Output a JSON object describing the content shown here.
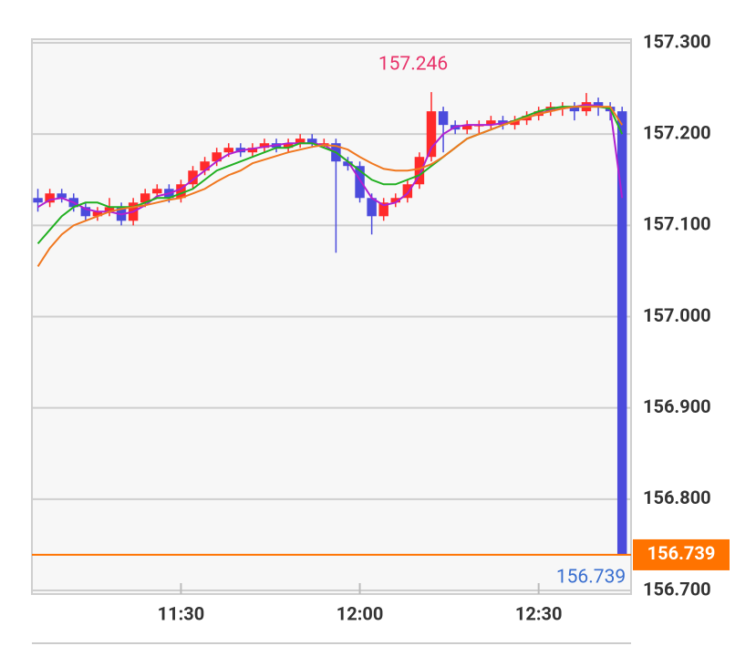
{
  "chart_data": {
    "type": "candlestick",
    "x": [
      666,
      668,
      670,
      672,
      674,
      676,
      678,
      680,
      682,
      684,
      686,
      688,
      690,
      692,
      694,
      696,
      698,
      700,
      702,
      704,
      706,
      708,
      710,
      712,
      714,
      716,
      718,
      720,
      722,
      724,
      726,
      728,
      730,
      732,
      734,
      736,
      738,
      740,
      742,
      744,
      746,
      748,
      750,
      752,
      754,
      756,
      758,
      760,
      762,
      764
    ],
    "open": [
      157.13,
      157.125,
      157.135,
      157.13,
      157.12,
      157.11,
      157.115,
      157.12,
      157.105,
      157.125,
      157.135,
      157.14,
      157.13,
      157.145,
      157.16,
      157.17,
      157.18,
      157.185,
      157.18,
      157.185,
      157.19,
      157.185,
      157.19,
      157.195,
      157.19,
      157.19,
      157.17,
      157.165,
      157.13,
      157.11,
      157.125,
      157.13,
      157.145,
      157.175,
      157.225,
      157.21,
      157.205,
      157.21,
      157.21,
      157.215,
      157.21,
      157.215,
      157.22,
      157.225,
      157.23,
      157.23,
      157.225,
      157.235,
      157.23,
      157.225
    ],
    "high": [
      157.14,
      157.14,
      157.14,
      157.135,
      157.125,
      157.12,
      157.13,
      157.125,
      157.13,
      157.14,
      157.145,
      157.145,
      157.15,
      157.165,
      157.175,
      157.185,
      157.19,
      157.19,
      157.19,
      157.195,
      157.195,
      157.195,
      157.2,
      157.2,
      157.195,
      157.195,
      157.175,
      157.17,
      157.135,
      157.13,
      157.135,
      157.15,
      157.18,
      157.246,
      157.23,
      157.215,
      157.215,
      157.215,
      157.22,
      157.22,
      157.22,
      157.225,
      157.23,
      157.235,
      157.235,
      157.235,
      157.245,
      157.24,
      157.235,
      157.23
    ],
    "low": [
      157.115,
      157.12,
      157.125,
      157.115,
      157.105,
      157.105,
      157.11,
      157.1,
      157.1,
      157.12,
      157.13,
      157.125,
      157.125,
      157.14,
      157.155,
      157.165,
      157.175,
      157.175,
      157.175,
      157.18,
      157.18,
      157.18,
      157.185,
      157.185,
      157.185,
      157.07,
      157.16,
      157.125,
      157.09,
      157.105,
      157.12,
      157.125,
      157.14,
      157.17,
      157.18,
      157.2,
      157.2,
      157.2,
      157.205,
      157.205,
      157.205,
      157.21,
      157.215,
      157.22,
      157.22,
      157.215,
      157.22,
      157.22,
      157.215,
      156.739
    ],
    "close": [
      157.125,
      157.135,
      157.13,
      157.12,
      157.11,
      157.115,
      157.12,
      157.105,
      157.125,
      157.135,
      157.14,
      157.13,
      157.145,
      157.16,
      157.17,
      157.18,
      157.185,
      157.18,
      157.185,
      157.19,
      157.185,
      157.19,
      157.195,
      157.19,
      157.19,
      157.17,
      157.165,
      157.13,
      157.11,
      157.125,
      157.13,
      157.145,
      157.175,
      157.225,
      157.21,
      157.205,
      157.21,
      157.21,
      157.215,
      157.21,
      157.215,
      157.22,
      157.225,
      157.23,
      157.23,
      157.225,
      157.235,
      157.23,
      157.225,
      156.739
    ],
    "up_color": "#ff2a2a",
    "down_color": "#4b4bdc",
    "lines": [
      {
        "color": "#b020d0",
        "values": [
          157.12,
          157.128,
          157.13,
          157.125,
          157.118,
          157.115,
          157.115,
          157.112,
          157.115,
          157.122,
          157.132,
          157.135,
          157.14,
          157.15,
          157.16,
          157.17,
          157.178,
          157.182,
          157.184,
          157.186,
          157.188,
          157.19,
          157.19,
          157.19,
          157.188,
          157.18,
          157.17,
          157.15,
          157.13,
          157.122,
          157.125,
          157.135,
          157.155,
          157.185,
          157.2,
          157.208,
          157.21,
          157.21,
          157.21,
          157.212,
          157.214,
          157.218,
          157.222,
          157.226,
          157.228,
          157.23,
          157.232,
          157.231,
          157.228,
          157.13
        ]
      },
      {
        "color": "#22b022",
        "values": [
          157.08,
          157.095,
          157.11,
          157.12,
          157.125,
          157.125,
          157.12,
          157.12,
          157.12,
          157.125,
          157.13,
          157.13,
          157.135,
          157.14,
          157.15,
          157.16,
          157.165,
          157.17,
          157.175,
          157.18,
          157.185,
          157.185,
          157.19,
          157.19,
          157.185,
          157.18,
          157.17,
          157.16,
          157.15,
          157.145,
          157.145,
          157.15,
          157.155,
          157.165,
          157.175,
          157.185,
          157.195,
          157.2,
          157.205,
          157.21,
          157.215,
          157.22,
          157.225,
          157.228,
          157.23,
          157.23,
          157.23,
          157.23,
          157.228,
          157.2
        ]
      },
      {
        "color": "#f07820",
        "values": [
          157.055,
          157.075,
          157.09,
          157.1,
          157.105,
          157.11,
          157.115,
          157.118,
          157.12,
          157.122,
          157.125,
          157.128,
          157.13,
          157.135,
          157.14,
          157.148,
          157.155,
          157.16,
          157.168,
          157.172,
          157.176,
          157.18,
          157.183,
          157.186,
          157.188,
          157.187,
          157.183,
          157.175,
          157.168,
          157.162,
          157.16,
          157.16,
          157.162,
          157.167,
          157.175,
          157.185,
          157.195,
          157.2,
          157.205,
          157.21,
          157.214,
          157.218,
          157.222,
          157.225,
          157.228,
          157.23,
          157.23,
          157.23,
          157.23,
          157.21
        ]
      }
    ],
    "xlim": [
      665,
      765.5
    ],
    "ylim": [
      156.696,
      157.304
    ],
    "xticks": [
      {
        "value": 690,
        "label": "11:30"
      },
      {
        "value": 720,
        "label": "12:00"
      },
      {
        "value": 750,
        "label": "12:30"
      }
    ],
    "yticks": [
      {
        "value": 156.7,
        "label": "156.700"
      },
      {
        "value": 156.8,
        "label": "156.800"
      },
      {
        "value": 156.9,
        "label": "156.900"
      },
      {
        "value": 157.0,
        "label": "157.000"
      },
      {
        "value": 157.1,
        "label": "157.100"
      },
      {
        "value": 157.2,
        "label": "157.200"
      },
      {
        "value": 157.3,
        "label": "157.300"
      }
    ],
    "grid": true,
    "last_price_color": "#ff7300",
    "max_label_color": "#e8336a",
    "min_label_color": "#3a6fd0"
  }
}
